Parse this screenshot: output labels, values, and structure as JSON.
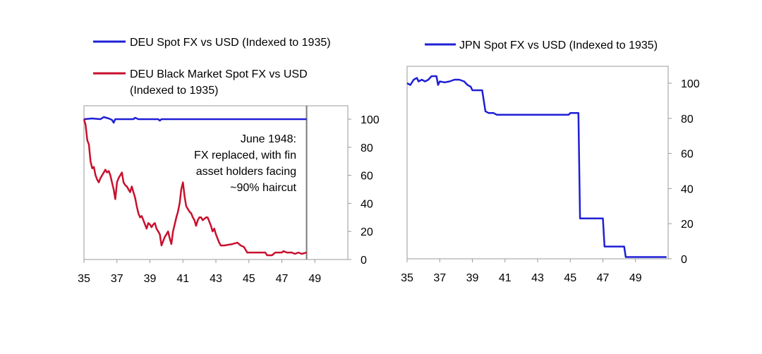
{
  "chart_data": [
    {
      "type": "line",
      "legend": [
        {
          "label": "DEU Spot FX vs USD (Indexed to 1935)",
          "color": "#1f1fd6"
        },
        {
          "label_lines": [
            "DEU Black Market Spot FX vs USD",
            "(Indexed to 1935)"
          ],
          "color": "#c8102e"
        }
      ],
      "annotation_lines": [
        "June 1948:",
        "FX  replaced, with fin",
        "asset holders facing",
        "~90% haircut"
      ],
      "x_ticks": [
        "35",
        "37",
        "39",
        "41",
        "43",
        "45",
        "47",
        "49"
      ],
      "xlim": [
        35,
        51
      ],
      "y_ticks": [
        "0",
        "20",
        "40",
        "60",
        "80",
        "100"
      ],
      "ylim": [
        0,
        105
      ],
      "marker_x": 48.5,
      "series": [
        {
          "name": "DEU Spot FX vs USD (Indexed to 1935)",
          "color": "#1f1fd6",
          "points": [
            [
              35.0,
              100
            ],
            [
              35.5,
              100.5
            ],
            [
              36.0,
              100
            ],
            [
              36.2,
              101.5
            ],
            [
              36.5,
              100.5
            ],
            [
              36.7,
              99.5
            ],
            [
              36.8,
              97.5
            ],
            [
              36.9,
              100
            ],
            [
              37.5,
              100
            ],
            [
              38.0,
              100
            ],
            [
              38.1,
              101
            ],
            [
              38.3,
              100
            ],
            [
              39.0,
              100
            ],
            [
              39.5,
              100
            ],
            [
              39.6,
              99
            ],
            [
              39.7,
              100
            ],
            [
              40.0,
              100
            ],
            [
              42.0,
              100
            ],
            [
              44.0,
              100
            ],
            [
              46.0,
              100
            ],
            [
              48.5,
              100
            ]
          ]
        },
        {
          "name": "DEU Black Market Spot FX vs USD (Indexed to 1935)",
          "color": "#c8102e",
          "points": [
            [
              35.0,
              100
            ],
            [
              35.1,
              96
            ],
            [
              35.2,
              85
            ],
            [
              35.3,
              82
            ],
            [
              35.4,
              70
            ],
            [
              35.5,
              65
            ],
            [
              35.6,
              66
            ],
            [
              35.7,
              60
            ],
            [
              35.8,
              57
            ],
            [
              35.9,
              55
            ],
            [
              36.0,
              58
            ],
            [
              36.1,
              60
            ],
            [
              36.2,
              62
            ],
            [
              36.3,
              64
            ],
            [
              36.4,
              62
            ],
            [
              36.5,
              63
            ],
            [
              36.6,
              60
            ],
            [
              36.7,
              55
            ],
            [
              36.8,
              50
            ],
            [
              36.9,
              43
            ],
            [
              37.0,
              55
            ],
            [
              37.1,
              58
            ],
            [
              37.2,
              60
            ],
            [
              37.3,
              62
            ],
            [
              37.4,
              55
            ],
            [
              37.5,
              53
            ],
            [
              37.6,
              52
            ],
            [
              37.7,
              50
            ],
            [
              37.8,
              48
            ],
            [
              37.9,
              52
            ],
            [
              38.0,
              48
            ],
            [
              38.1,
              44
            ],
            [
              38.2,
              38
            ],
            [
              38.3,
              33
            ],
            [
              38.4,
              30
            ],
            [
              38.5,
              31
            ],
            [
              38.6,
              28
            ],
            [
              38.7,
              25
            ],
            [
              38.8,
              22
            ],
            [
              38.9,
              26
            ],
            [
              39.0,
              25
            ],
            [
              39.1,
              23
            ],
            [
              39.2,
              25
            ],
            [
              39.3,
              26
            ],
            [
              39.4,
              22
            ],
            [
              39.5,
              20
            ],
            [
              39.6,
              18
            ],
            [
              39.7,
              10
            ],
            [
              39.8,
              13
            ],
            [
              39.9,
              16
            ],
            [
              40.0,
              18
            ],
            [
              40.1,
              20
            ],
            [
              40.2,
              15
            ],
            [
              40.3,
              11
            ],
            [
              40.4,
              20
            ],
            [
              40.5,
              25
            ],
            [
              40.6,
              30
            ],
            [
              40.7,
              34
            ],
            [
              40.8,
              40
            ],
            [
              40.9,
              50
            ],
            [
              41.0,
              55
            ],
            [
              41.1,
              45
            ],
            [
              41.2,
              38
            ],
            [
              41.3,
              36
            ],
            [
              41.4,
              34
            ],
            [
              41.5,
              33
            ],
            [
              41.6,
              30
            ],
            [
              41.7,
              28
            ],
            [
              41.8,
              24
            ],
            [
              41.9,
              28
            ],
            [
              42.0,
              30
            ],
            [
              42.1,
              30
            ],
            [
              42.2,
              28
            ],
            [
              42.3,
              29
            ],
            [
              42.4,
              30
            ],
            [
              42.5,
              30
            ],
            [
              42.6,
              27
            ],
            [
              42.7,
              24
            ],
            [
              42.8,
              20
            ],
            [
              42.9,
              22
            ],
            [
              43.0,
              18
            ],
            [
              43.1,
              15
            ],
            [
              43.2,
              12
            ],
            [
              43.3,
              10
            ],
            [
              43.5,
              10
            ],
            [
              44.0,
              11
            ],
            [
              44.3,
              12
            ],
            [
              44.5,
              10
            ],
            [
              44.7,
              9
            ],
            [
              44.9,
              5
            ],
            [
              45.0,
              5
            ],
            [
              45.5,
              5
            ],
            [
              46.0,
              5
            ],
            [
              46.1,
              3
            ],
            [
              46.4,
              3
            ],
            [
              46.6,
              5
            ],
            [
              47.0,
              5
            ],
            [
              47.1,
              6
            ],
            [
              47.3,
              5
            ],
            [
              47.6,
              5
            ],
            [
              47.8,
              4
            ],
            [
              48.0,
              5
            ],
            [
              48.2,
              4
            ],
            [
              48.5,
              5
            ]
          ]
        }
      ]
    },
    {
      "type": "line",
      "legend": [
        {
          "label": "JPN Spot FX vs USD (Indexed to 1935)",
          "color": "#1f1fd6"
        }
      ],
      "x_ticks": [
        "35",
        "37",
        "39",
        "41",
        "43",
        "45",
        "47",
        "49"
      ],
      "xlim": [
        35,
        51
      ],
      "y_ticks": [
        "0",
        "20",
        "40",
        "60",
        "80",
        "100"
      ],
      "ylim": [
        0,
        110
      ],
      "series": [
        {
          "name": "JPN Spot FX vs USD (Indexed to 1935)",
          "color": "#1f1fd6",
          "points": [
            [
              35.0,
              100
            ],
            [
              35.2,
              99
            ],
            [
              35.4,
              102
            ],
            [
              35.6,
              103
            ],
            [
              35.7,
              101
            ],
            [
              35.9,
              102
            ],
            [
              36.1,
              101
            ],
            [
              36.3,
              102
            ],
            [
              36.5,
              104
            ],
            [
              36.8,
              104
            ],
            [
              36.9,
              99
            ],
            [
              37.0,
              101
            ],
            [
              37.3,
              100.5
            ],
            [
              37.6,
              101
            ],
            [
              37.9,
              102
            ],
            [
              38.2,
              102
            ],
            [
              38.5,
              101
            ],
            [
              38.7,
              99
            ],
            [
              38.9,
              98
            ],
            [
              39.0,
              96
            ],
            [
              39.6,
              96
            ],
            [
              39.7,
              90
            ],
            [
              39.8,
              84
            ],
            [
              40.0,
              83
            ],
            [
              40.3,
              83
            ],
            [
              40.5,
              82
            ],
            [
              41.0,
              82
            ],
            [
              43.0,
              82
            ],
            [
              44.9,
              82
            ],
            [
              45.0,
              83
            ],
            [
              45.5,
              83
            ],
            [
              45.6,
              23
            ],
            [
              47.0,
              23
            ],
            [
              47.1,
              7
            ],
            [
              48.3,
              7
            ],
            [
              48.4,
              1
            ],
            [
              49.0,
              1
            ],
            [
              50.0,
              1
            ],
            [
              50.9,
              1
            ]
          ]
        }
      ]
    }
  ]
}
